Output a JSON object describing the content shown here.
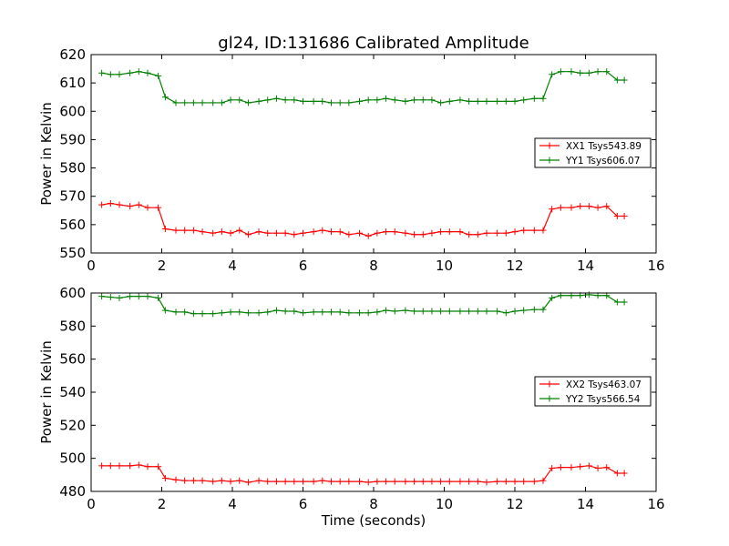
{
  "figure": {
    "title": "gl24, ID:131686 Calibrated Amplitude"
  },
  "chart_data": [
    {
      "type": "line",
      "ylabel": "Power in Kelvin",
      "xlabel": "",
      "xlim": [
        0,
        16
      ],
      "ylim": [
        550,
        620
      ],
      "xticks": [
        "0",
        "2",
        "4",
        "6",
        "8",
        "10",
        "12",
        "14",
        "16"
      ],
      "yticks": [
        "550",
        "560",
        "570",
        "580",
        "590",
        "600",
        "610",
        "620"
      ],
      "grid": false,
      "legend_position": "right",
      "x": [
        0.3,
        0.55,
        0.8,
        1.1,
        1.35,
        1.6,
        1.9,
        2.1,
        2.4,
        2.65,
        2.9,
        3.15,
        3.45,
        3.7,
        3.95,
        4.2,
        4.45,
        4.75,
        5.0,
        5.25,
        5.5,
        5.75,
        6.0,
        6.3,
        6.55,
        6.8,
        7.05,
        7.3,
        7.6,
        7.85,
        8.1,
        8.35,
        8.6,
        8.9,
        9.15,
        9.4,
        9.65,
        9.9,
        10.15,
        10.45,
        10.7,
        10.95,
        11.2,
        11.5,
        11.75,
        12.0,
        12.25,
        12.55,
        12.8,
        13.05,
        13.3,
        13.6,
        13.85,
        14.1,
        14.35,
        14.6,
        14.9,
        15.1
      ],
      "series": [
        {
          "name": "XX1 Tsys543.89",
          "color": "#ff0000",
          "values": [
            567,
            567.5,
            567,
            566.5,
            567,
            566,
            566,
            558.5,
            558,
            558,
            558,
            557.5,
            557,
            557.5,
            557,
            558,
            556.5,
            557.5,
            557,
            557,
            557,
            556.5,
            557,
            557.5,
            558,
            557.5,
            557.5,
            556.5,
            557,
            556,
            557,
            557.5,
            557.5,
            557,
            556.5,
            556.5,
            557,
            557.5,
            557.5,
            557.5,
            556.5,
            556.5,
            557,
            557,
            557,
            557.5,
            558,
            558,
            558,
            565.5,
            566,
            566,
            566.5,
            566.5,
            566,
            566.5,
            563,
            563
          ]
        },
        {
          "name": "YY1 Tsys606.07",
          "color": "#008000",
          "values": [
            613.5,
            613,
            613,
            613.5,
            614,
            613.5,
            612.5,
            605,
            603,
            603,
            603,
            603,
            603,
            603,
            604,
            604,
            603,
            603.5,
            604,
            604.5,
            604,
            604,
            603.5,
            603.5,
            603.5,
            603,
            603,
            603,
            603.5,
            604,
            604,
            604.5,
            604,
            603.5,
            604,
            604,
            604,
            603,
            603.5,
            604,
            603.5,
            603.5,
            603.5,
            603.5,
            603.5,
            603.5,
            604,
            604.5,
            604.5,
            613,
            614,
            614,
            613.5,
            613.5,
            614,
            614,
            611,
            611
          ]
        }
      ]
    },
    {
      "type": "line",
      "ylabel": "Power in Kelvin",
      "xlabel": "Time (seconds)",
      "xlim": [
        0,
        16
      ],
      "ylim": [
        480,
        600
      ],
      "xticks": [
        "0",
        "2",
        "4",
        "6",
        "8",
        "10",
        "12",
        "14",
        "16"
      ],
      "yticks": [
        "480",
        "500",
        "520",
        "540",
        "560",
        "580",
        "600"
      ],
      "grid": false,
      "legend_position": "right",
      "x": [
        0.3,
        0.55,
        0.8,
        1.1,
        1.35,
        1.6,
        1.9,
        2.1,
        2.4,
        2.65,
        2.9,
        3.15,
        3.45,
        3.7,
        3.95,
        4.2,
        4.45,
        4.75,
        5.0,
        5.25,
        5.5,
        5.75,
        6.0,
        6.3,
        6.55,
        6.8,
        7.05,
        7.3,
        7.6,
        7.85,
        8.1,
        8.35,
        8.6,
        8.9,
        9.15,
        9.4,
        9.65,
        9.9,
        10.15,
        10.45,
        10.7,
        10.95,
        11.2,
        11.5,
        11.75,
        12.0,
        12.25,
        12.55,
        12.8,
        13.05,
        13.3,
        13.6,
        13.85,
        14.1,
        14.35,
        14.6,
        14.9,
        15.1
      ],
      "series": [
        {
          "name": "XX2 Tsys463.07",
          "color": "#ff0000",
          "values": [
            495.5,
            495.5,
            495.5,
            495.5,
            496,
            495,
            495,
            488,
            487,
            486.5,
            486.5,
            486.5,
            486,
            486.5,
            486,
            486.5,
            485.5,
            486.5,
            486,
            486,
            486,
            486,
            486,
            486,
            486.5,
            486,
            486,
            486,
            486,
            485.5,
            486,
            486,
            486,
            486,
            486,
            486,
            486,
            486,
            486,
            486,
            486,
            486,
            485.5,
            486,
            486,
            486,
            486,
            486,
            486.5,
            494,
            494.5,
            494.5,
            495,
            495.5,
            494,
            494.5,
            491,
            491
          ]
        },
        {
          "name": "YY2 Tsys566.54",
          "color": "#008000",
          "values": [
            598,
            597.5,
            597,
            598,
            598,
            598,
            597,
            589.5,
            588.5,
            588.5,
            587.5,
            587.5,
            587.5,
            588,
            588.5,
            588.5,
            588,
            588,
            588.5,
            589.5,
            589,
            589,
            588,
            588.5,
            588.5,
            588.5,
            588.5,
            588,
            588,
            588,
            588.5,
            589.5,
            589,
            589.5,
            589,
            589,
            589,
            589,
            589,
            589,
            589,
            589,
            589,
            589,
            588,
            589,
            589.5,
            590,
            590,
            597,
            598.5,
            598.5,
            598.5,
            599,
            598.5,
            598.5,
            594.5,
            594.5
          ]
        }
      ]
    }
  ]
}
